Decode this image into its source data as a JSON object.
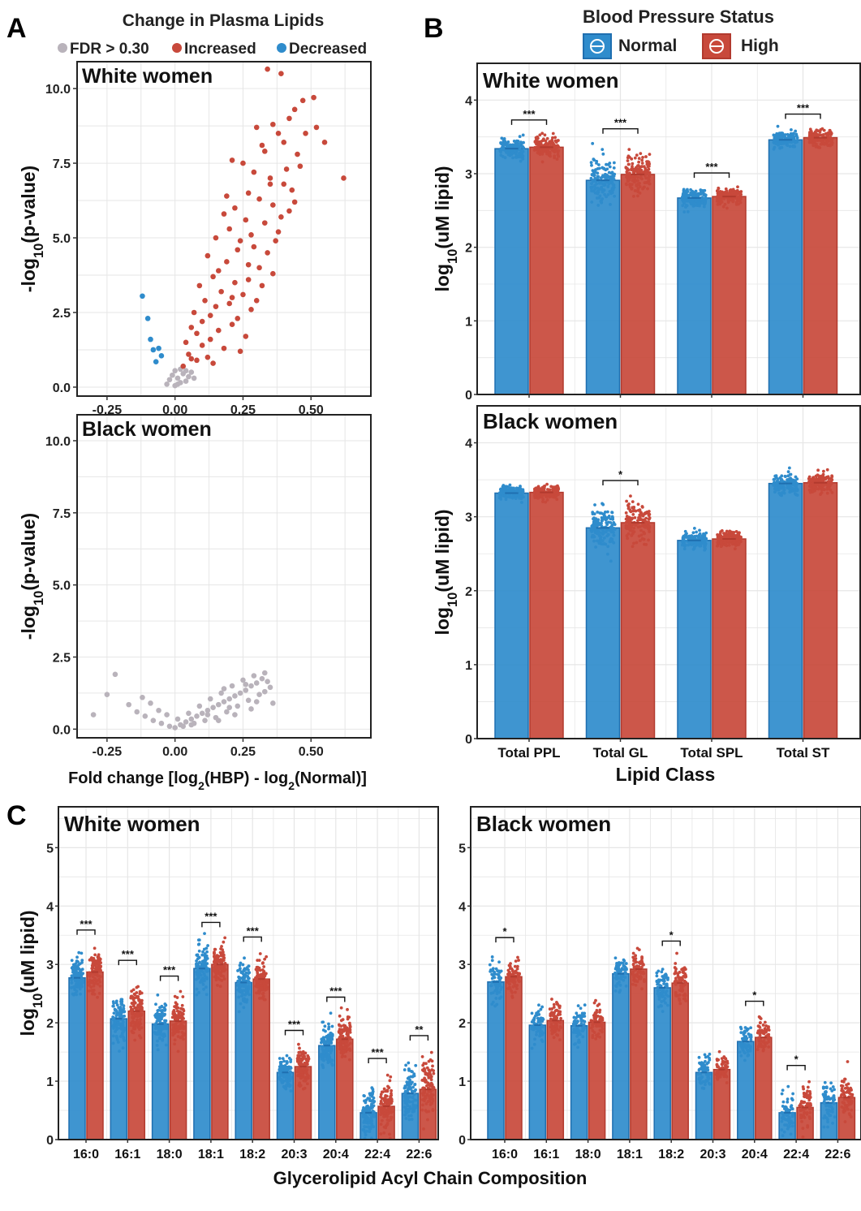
{
  "colors": {
    "normal": "#2f8ccc",
    "high": "#c8493b",
    "normal_edge": "#1f6fb0",
    "high_edge": "#b23a2e",
    "fdr": "#b9b3bb",
    "grid": "#e6e6e6",
    "panel_border": "#222222"
  },
  "panel_labels": {
    "a": "A",
    "b": "B",
    "c": "C"
  },
  "legend_a": {
    "title": "Change in Plasma Lipids",
    "items": [
      "FDR > 0.30",
      "Increased",
      "Decreased"
    ]
  },
  "legend_b": {
    "title": "Blood Pressure Status",
    "items": [
      "Normal",
      "High"
    ]
  },
  "chart_data": [
    {
      "id": "A_white",
      "type": "scatter",
      "subtitle": "White women",
      "ylabel_main": "-log",
      "ylabel_sub": "10",
      "ylabel_tail": "(p-value)",
      "xlim": [
        -0.36,
        0.72
      ],
      "ylim": [
        -0.3,
        10.9
      ],
      "x_ticks": [
        -0.25,
        0.0,
        0.25,
        0.5
      ],
      "x_tick_labels": [
        "-0.25",
        "0.00",
        "0.25",
        "0.50"
      ],
      "y_ticks": [
        0,
        2.5,
        5,
        7.5,
        10
      ],
      "y_tick_labels": [
        "0.0",
        "2.5",
        "5.0",
        "7.5",
        "10.0"
      ],
      "series": [
        {
          "name": "Decreased",
          "points": [
            [
              -0.12,
              3.05
            ],
            [
              -0.1,
              2.3
            ],
            [
              -0.09,
              1.6
            ],
            [
              -0.08,
              1.25
            ],
            [
              -0.06,
              1.3
            ],
            [
              -0.05,
              1.05
            ],
            [
              -0.07,
              0.85
            ]
          ]
        },
        {
          "name": "FDR > 0.30",
          "points": [
            [
              -0.02,
              0.25
            ],
            [
              -0.01,
              0.4
            ],
            [
              0.0,
              0.55
            ],
            [
              0.01,
              0.3
            ],
            [
              0.02,
              0.15
            ],
            [
              0.03,
              0.45
            ],
            [
              0.04,
              0.2
            ],
            [
              0.05,
              0.35
            ],
            [
              0.06,
              0.5
            ],
            [
              -0.03,
              0.1
            ],
            [
              0.0,
              0.05
            ],
            [
              0.02,
              0.6
            ],
            [
              0.04,
              0.55
            ],
            [
              0.07,
              0.3
            ],
            [
              0.01,
              0.1
            ]
          ]
        },
        {
          "name": "Increased",
          "points": [
            [
              0.34,
              10.65
            ],
            [
              0.39,
              10.5
            ],
            [
              0.47,
              9.6
            ],
            [
              0.51,
              9.7
            ],
            [
              0.44,
              9.3
            ],
            [
              0.42,
              9.0
            ],
            [
              0.36,
              8.8
            ],
            [
              0.3,
              8.7
            ],
            [
              0.38,
              8.5
            ],
            [
              0.4,
              8.2
            ],
            [
              0.48,
              8.5
            ],
            [
              0.52,
              8.7
            ],
            [
              0.55,
              8.2
            ],
            [
              0.62,
              7.0
            ],
            [
              0.45,
              7.8
            ],
            [
              0.33,
              7.9
            ],
            [
              0.25,
              7.5
            ],
            [
              0.21,
              7.6
            ],
            [
              0.29,
              7.2
            ],
            [
              0.35,
              7.0
            ],
            [
              0.4,
              6.8
            ],
            [
              0.43,
              6.6
            ],
            [
              0.46,
              7.4
            ],
            [
              0.27,
              6.5
            ],
            [
              0.31,
              6.3
            ],
            [
              0.36,
              6.1
            ],
            [
              0.22,
              6.0
            ],
            [
              0.18,
              5.8
            ],
            [
              0.26,
              5.6
            ],
            [
              0.33,
              5.5
            ],
            [
              0.38,
              5.2
            ],
            [
              0.42,
              5.9
            ],
            [
              0.2,
              5.3
            ],
            [
              0.15,
              5.0
            ],
            [
              0.24,
              4.9
            ],
            [
              0.29,
              4.7
            ],
            [
              0.34,
              4.5
            ],
            [
              0.12,
              4.4
            ],
            [
              0.19,
              4.2
            ],
            [
              0.27,
              4.1
            ],
            [
              0.31,
              4.0
            ],
            [
              0.36,
              3.8
            ],
            [
              0.14,
              3.7
            ],
            [
              0.22,
              3.5
            ],
            [
              0.09,
              3.4
            ],
            [
              0.17,
              3.2
            ],
            [
              0.25,
              3.1
            ],
            [
              0.32,
              3.4
            ],
            [
              0.11,
              2.9
            ],
            [
              0.2,
              2.8
            ],
            [
              0.28,
              2.6
            ],
            [
              0.07,
              2.5
            ],
            [
              0.13,
              2.4
            ],
            [
              0.23,
              2.3
            ],
            [
              0.3,
              2.9
            ],
            [
              0.06,
              2.0
            ],
            [
              0.16,
              1.9
            ],
            [
              0.21,
              2.1
            ],
            [
              0.26,
              1.7
            ],
            [
              0.04,
              1.5
            ],
            [
              0.1,
              1.4
            ],
            [
              0.18,
              1.3
            ],
            [
              0.05,
              1.1
            ],
            [
              0.08,
              0.9
            ],
            [
              0.12,
              1.0
            ],
            [
              0.03,
              0.7
            ],
            [
              0.14,
              0.8
            ],
            [
              0.24,
              1.2
            ],
            [
              0.35,
              6.8
            ],
            [
              0.28,
              5.1
            ],
            [
              0.23,
              4.6
            ],
            [
              0.16,
              3.9
            ],
            [
              0.1,
              2.2
            ],
            [
              0.37,
              4.9
            ],
            [
              0.41,
              7.3
            ],
            [
              0.19,
              6.4
            ],
            [
              0.32,
              8.1
            ],
            [
              0.27,
              3.6
            ],
            [
              0.15,
              2.7
            ],
            [
              0.08,
              1.8
            ],
            [
              0.44,
              6.2
            ],
            [
              0.39,
              5.7
            ],
            [
              0.21,
              3.0
            ],
            [
              0.13,
              1.6
            ],
            [
              0.06,
              0.95
            ]
          ]
        }
      ]
    },
    {
      "id": "A_black",
      "type": "scatter",
      "subtitle": "Black women",
      "ylabel_main": "-log",
      "ylabel_sub": "10",
      "ylabel_tail": "(p-value)",
      "xlabel_a": "Fold change [log",
      "xlabel_sub1": "2",
      "xlabel_b": "(HBP) - log",
      "xlabel_sub2": "2",
      "xlabel_c": "(Normal)]",
      "xlim": [
        -0.36,
        0.72
      ],
      "ylim": [
        -0.3,
        10.9
      ],
      "x_ticks": [
        -0.25,
        0.0,
        0.25,
        0.5
      ],
      "x_tick_labels": [
        "-0.25",
        "0.00",
        "0.25",
        "0.50"
      ],
      "y_ticks": [
        0,
        2.5,
        5,
        7.5,
        10
      ],
      "y_tick_labels": [
        "0.0",
        "2.5",
        "5.0",
        "7.5",
        "10.0"
      ],
      "series": [
        {
          "name": "FDR > 0.30",
          "points": [
            [
              -0.3,
              0.5
            ],
            [
              -0.22,
              1.9
            ],
            [
              -0.25,
              1.2
            ],
            [
              -0.17,
              0.85
            ],
            [
              -0.14,
              0.6
            ],
            [
              -0.11,
              0.45
            ],
            [
              -0.08,
              0.3
            ],
            [
              -0.05,
              0.2
            ],
            [
              -0.02,
              0.1
            ],
            [
              0.0,
              0.05
            ],
            [
              0.02,
              0.15
            ],
            [
              0.04,
              0.25
            ],
            [
              0.06,
              0.35
            ],
            [
              0.08,
              0.45
            ],
            [
              0.1,
              0.55
            ],
            [
              0.12,
              0.65
            ],
            [
              0.14,
              0.75
            ],
            [
              0.16,
              0.85
            ],
            [
              0.18,
              0.95
            ],
            [
              0.2,
              1.05
            ],
            [
              0.22,
              1.15
            ],
            [
              0.24,
              1.25
            ],
            [
              0.26,
              1.35
            ],
            [
              0.28,
              1.5
            ],
            [
              0.3,
              1.6
            ],
            [
              0.32,
              1.75
            ],
            [
              0.33,
              1.95
            ],
            [
              0.35,
              1.45
            ],
            [
              0.36,
              0.9
            ],
            [
              0.31,
              1.2
            ],
            [
              0.27,
              1.0
            ],
            [
              0.23,
              0.8
            ],
            [
              0.19,
              0.6
            ],
            [
              0.15,
              0.4
            ],
            [
              0.11,
              0.3
            ],
            [
              0.07,
              0.2
            ],
            [
              0.03,
              0.1
            ],
            [
              0.25,
              1.7
            ],
            [
              0.29,
              1.85
            ],
            [
              0.21,
              1.5
            ],
            [
              0.17,
              1.25
            ],
            [
              0.13,
              1.05
            ],
            [
              0.09,
              0.8
            ],
            [
              0.05,
              0.55
            ],
            [
              0.01,
              0.35
            ],
            [
              -0.03,
              0.5
            ],
            [
              -0.06,
              0.65
            ],
            [
              -0.09,
              0.9
            ],
            [
              -0.12,
              1.1
            ],
            [
              0.28,
              0.7
            ],
            [
              0.22,
              0.5
            ],
            [
              0.16,
              0.3
            ],
            [
              0.33,
              1.3
            ],
            [
              0.3,
              0.95
            ],
            [
              0.2,
              0.75
            ],
            [
              0.26,
              1.55
            ],
            [
              0.34,
              1.65
            ],
            [
              0.18,
              1.4
            ],
            [
              0.12,
              0.5
            ],
            [
              0.06,
              0.15
            ]
          ]
        }
      ]
    },
    {
      "id": "B_white",
      "type": "bar",
      "subtitle": "White women",
      "ylabel_main": "log",
      "ylabel_sub": "10",
      "ylabel_tail": "(uM lipid)",
      "ylim": [
        0,
        4.5
      ],
      "y_ticks": [
        0,
        1,
        2,
        3,
        4
      ],
      "y_tick_labels": [
        "0",
        "1",
        "2",
        "3",
        "4"
      ],
      "categories": [
        "Total PPL",
        "Total GL",
        "Total SPL",
        "Total ST"
      ],
      "series": [
        {
          "name": "Normal",
          "values": [
            3.34,
            2.91,
            2.67,
            3.46
          ]
        },
        {
          "name": "High",
          "values": [
            3.36,
            2.99,
            2.69,
            3.49
          ]
        }
      ],
      "significance": [
        "***",
        "***",
        "***",
        "***"
      ],
      "spread": [
        0.25,
        0.5,
        0.2,
        0.2
      ]
    },
    {
      "id": "B_black",
      "type": "bar",
      "subtitle": "Black women",
      "ylabel_main": "log",
      "ylabel_sub": "10",
      "ylabel_tail": "(uM lipid)",
      "xlabel": "Lipid Class",
      "ylim": [
        0,
        4.5
      ],
      "y_ticks": [
        0,
        1,
        2,
        3,
        4
      ],
      "y_tick_labels": [
        "0",
        "1",
        "2",
        "3",
        "4"
      ],
      "categories": [
        "Total PPL",
        "Total GL",
        "Total SPL",
        "Total ST"
      ],
      "series": [
        {
          "name": "Normal",
          "values": [
            3.32,
            2.85,
            2.68,
            3.45
          ]
        },
        {
          "name": "High",
          "values": [
            3.33,
            2.92,
            2.7,
            3.46
          ]
        }
      ],
      "significance": [
        "",
        "*",
        "",
        ""
      ],
      "spread": [
        0.15,
        0.45,
        0.18,
        0.22
      ]
    },
    {
      "id": "C_white",
      "type": "bar",
      "subtitle": "White women",
      "ylabel_main": "log",
      "ylabel_sub": "10",
      "ylabel_tail": "(uM lipid)",
      "ylim": [
        0,
        5.7
      ],
      "y_ticks": [
        0,
        1,
        2,
        3,
        4,
        5
      ],
      "y_tick_labels": [
        "0",
        "1",
        "2",
        "3",
        "4",
        "5"
      ],
      "categories": [
        "16:0",
        "16:1",
        "18:0",
        "18:1",
        "18:2",
        "20:3",
        "20:4",
        "22:4",
        "22:6"
      ],
      "series": [
        {
          "name": "Normal",
          "values": [
            2.77,
            2.07,
            1.98,
            2.93,
            2.69,
            1.15,
            1.61,
            0.46,
            0.79
          ]
        },
        {
          "name": "High",
          "values": [
            2.87,
            2.2,
            2.03,
            3.0,
            2.75,
            1.25,
            1.72,
            0.57,
            0.86
          ]
        }
      ],
      "significance": [
        "***",
        "***",
        "***",
        "***",
        "***",
        "***",
        "***",
        "***",
        "**"
      ],
      "spread": [
        0.6,
        0.75,
        0.65,
        0.6,
        0.6,
        0.5,
        0.6,
        0.7,
        0.8
      ]
    },
    {
      "id": "C_black",
      "type": "bar",
      "subtitle": "Black women",
      "xlabel": "Glycerolipid Acyl Chain Composition",
      "ylim": [
        0,
        5.7
      ],
      "y_ticks": [
        0,
        1,
        2,
        3,
        4,
        5
      ],
      "y_tick_labels": [
        "0",
        "1",
        "2",
        "3",
        "4",
        "5"
      ],
      "categories": [
        "16:0",
        "16:1",
        "18:0",
        "18:1",
        "18:2",
        "20:3",
        "20:4",
        "22:4",
        "22:6"
      ],
      "series": [
        {
          "name": "Normal",
          "values": [
            2.7,
            1.96,
            1.95,
            2.84,
            2.6,
            1.15,
            1.68,
            0.46,
            0.63
          ]
        },
        {
          "name": "High",
          "values": [
            2.79,
            2.04,
            2.01,
            2.92,
            2.68,
            1.2,
            1.75,
            0.55,
            0.72
          ]
        }
      ],
      "significance": [
        "*",
        "",
        "",
        "",
        "*",
        "",
        "*",
        "*",
        ""
      ],
      "spread": [
        0.55,
        0.55,
        0.55,
        0.5,
        0.6,
        0.45,
        0.5,
        0.6,
        0.7
      ]
    }
  ]
}
